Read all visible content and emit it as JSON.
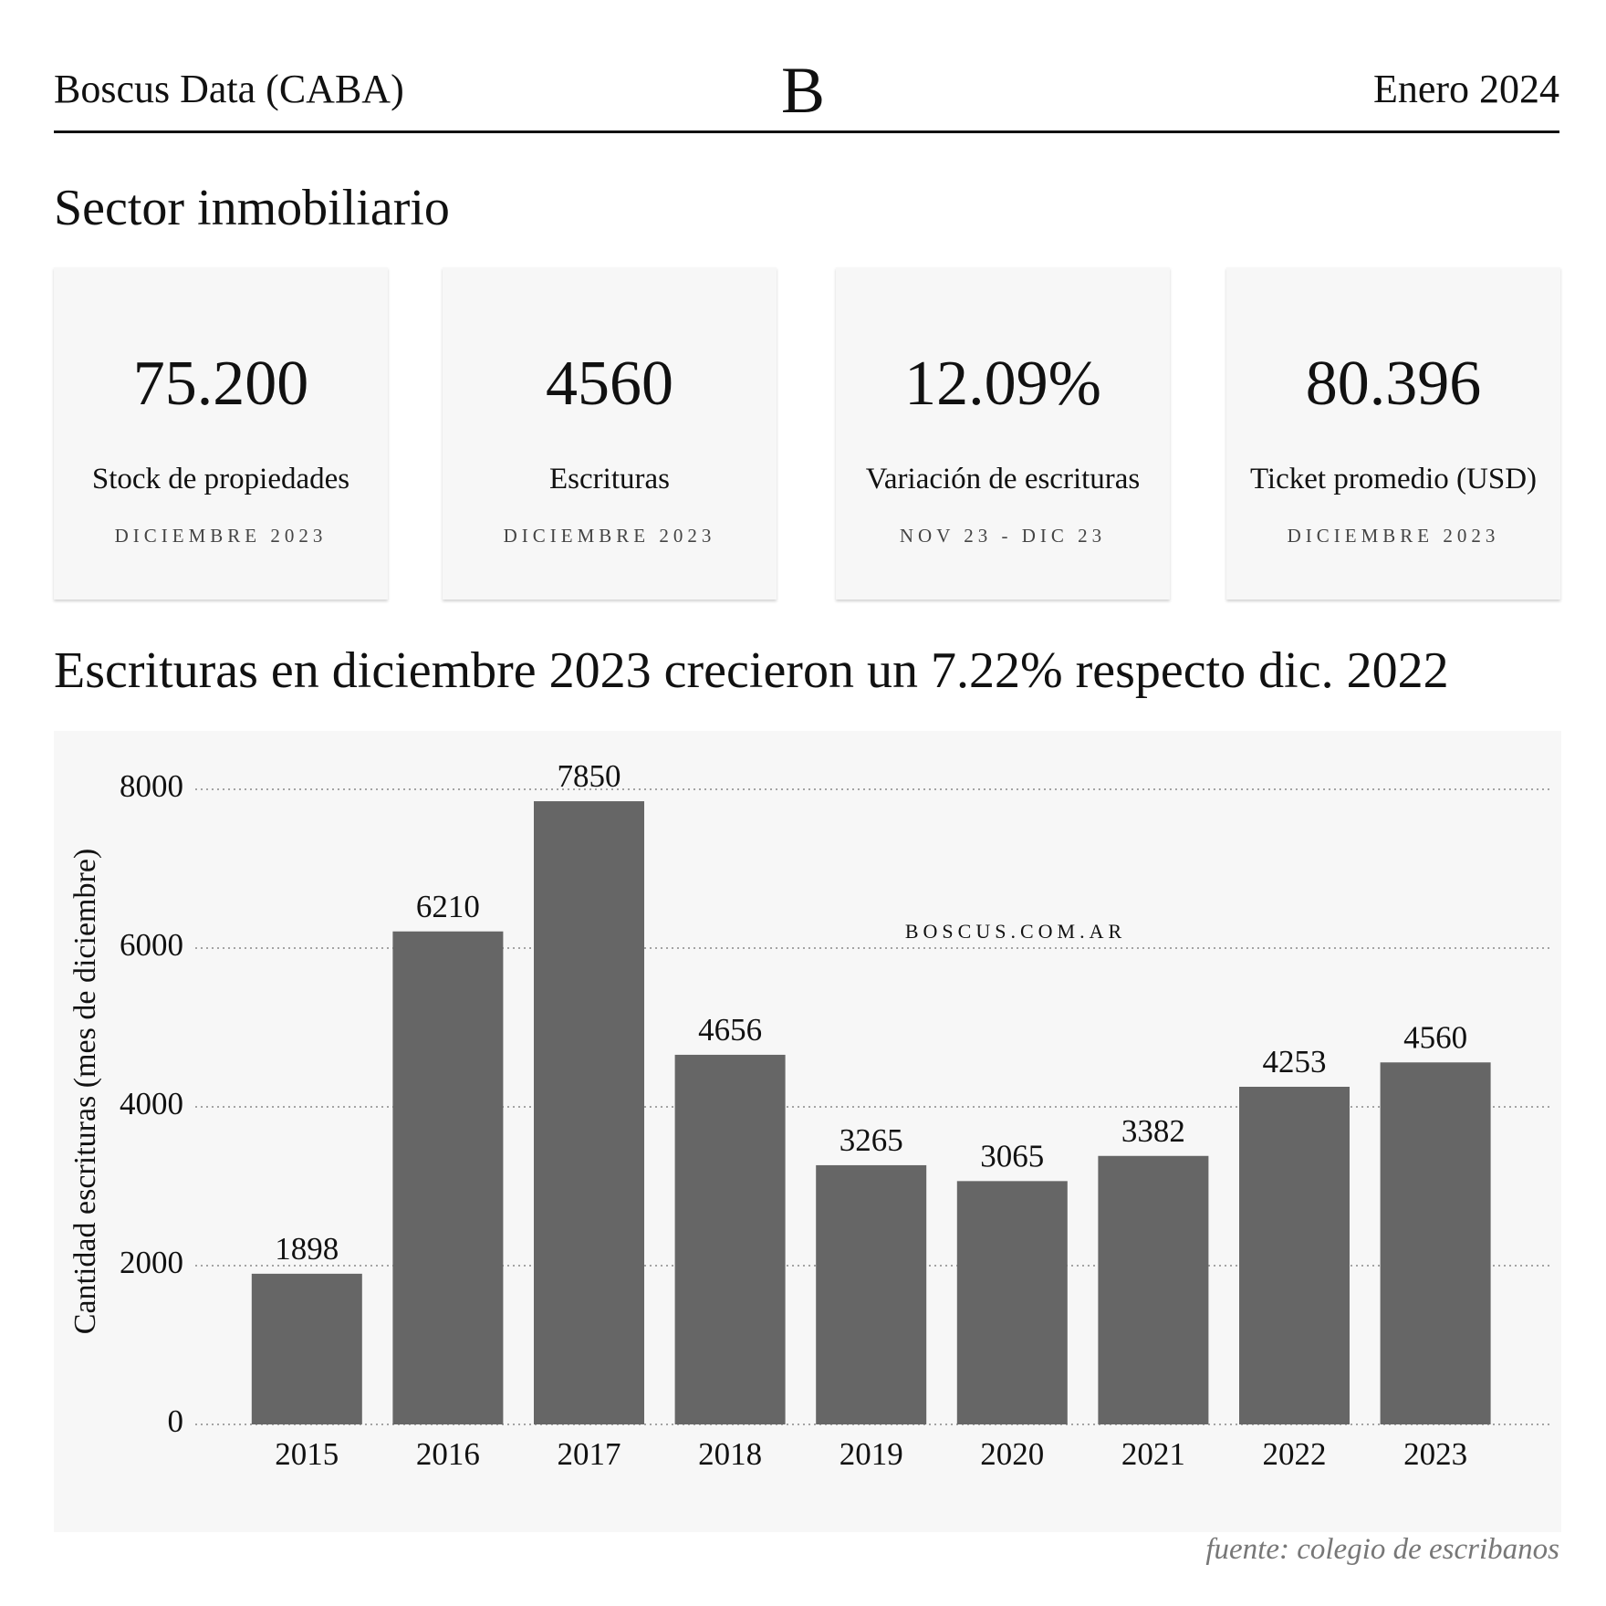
{
  "header": {
    "left": "Boscus Data (CABA)",
    "logo": "B",
    "right": "Enero 2024"
  },
  "section_title": "Sector inmobiliario",
  "cards": [
    {
      "value": "75.200",
      "label": "Stock de propiedades",
      "period": "DICIEMBRE 2023"
    },
    {
      "value": "4560",
      "label": "Escrituras",
      "period": "DICIEMBRE 2023"
    },
    {
      "value": "12.09%",
      "label": "Variación de escrituras",
      "period": "NOV 23 - DIC 23"
    },
    {
      "value": "80.396",
      "label": "Ticket promedio (USD)",
      "period": "DICIEMBRE 2023"
    }
  ],
  "chart_data": {
    "type": "bar",
    "title": "Escrituras en diciembre 2023 crecieron un 7.22% respecto dic. 2022",
    "ylabel": "Cantidad escrituras (mes de diciembre)",
    "watermark": "BOSCUS.COM.AR",
    "source": "fuente: colegio de escribanos",
    "categories": [
      "2015",
      "2016",
      "2017",
      "2018",
      "2019",
      "2020",
      "2021",
      "2022",
      "2023"
    ],
    "values": [
      1898,
      6210,
      7850,
      4656,
      3265,
      3065,
      3382,
      4253,
      4560
    ],
    "color": "#666666",
    "ylim": [
      0,
      8000
    ],
    "yticks": [
      0,
      2000,
      4000,
      6000,
      8000
    ],
    "grid": true
  }
}
